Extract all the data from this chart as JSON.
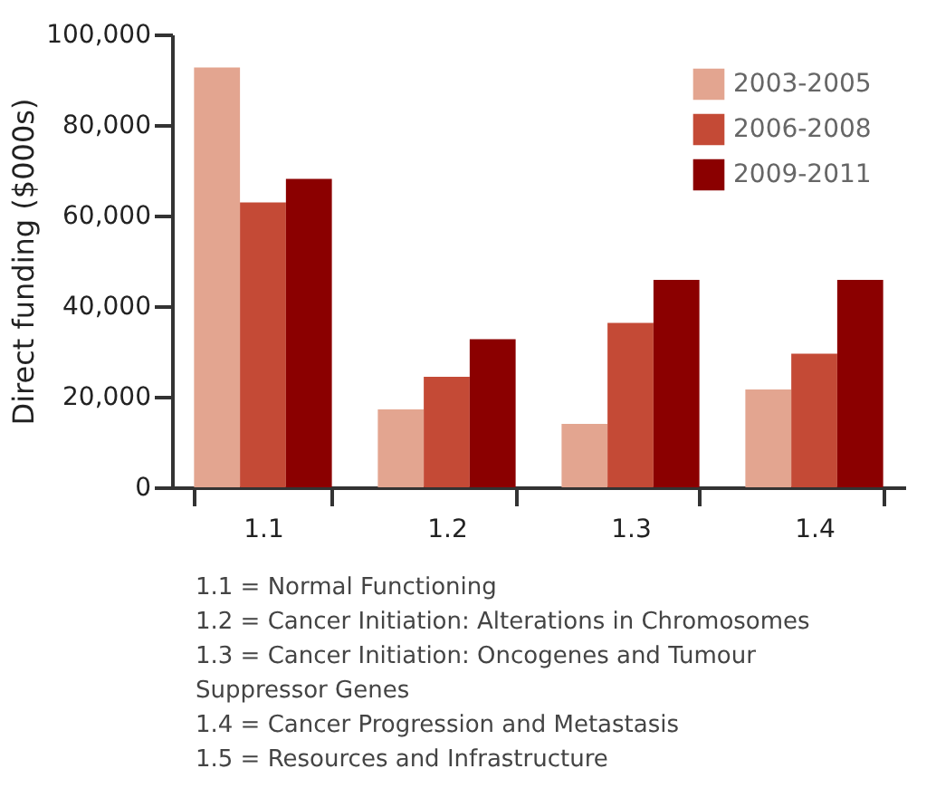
{
  "chart_data": {
    "type": "bar",
    "ylabel": "Direct funding ($000s)",
    "categories": [
      "1.1",
      "1.2",
      "1.3",
      "1.4"
    ],
    "series": [
      {
        "name": "2003-2005",
        "color": "#e3a590",
        "values": [
          92700,
          17200,
          14000,
          21600
        ]
      },
      {
        "name": "2006-2008",
        "color": "#c44a36",
        "values": [
          62900,
          24400,
          36300,
          29500
        ]
      },
      {
        "name": "2009-2011",
        "color": "#8b0000",
        "values": [
          68100,
          32700,
          45800,
          45800
        ]
      }
    ],
    "ylim": [
      0,
      100000
    ],
    "yticks": [
      0,
      {
        "value": 20000,
        "label": "20,000"
      },
      {
        "value": 40000,
        "label": "40,000"
      },
      {
        "value": 60000,
        "label": "60,000"
      },
      {
        "value": 80000,
        "label": "80,000"
      },
      {
        "value": 100000,
        "label": "100,000"
      }
    ],
    "grid": false,
    "legend": "top right",
    "annotations": [
      "1.1 = Normal Functioning",
      "1.2 = Cancer Initiation: Alterations in Chromosomes",
      "1.3 = Cancer Initiation: Oncogenes and Tumour Suppressor Genes",
      "1.4 = Cancer Progression and Metastasis",
      "1.5 = Resources and Infrastructure"
    ]
  }
}
